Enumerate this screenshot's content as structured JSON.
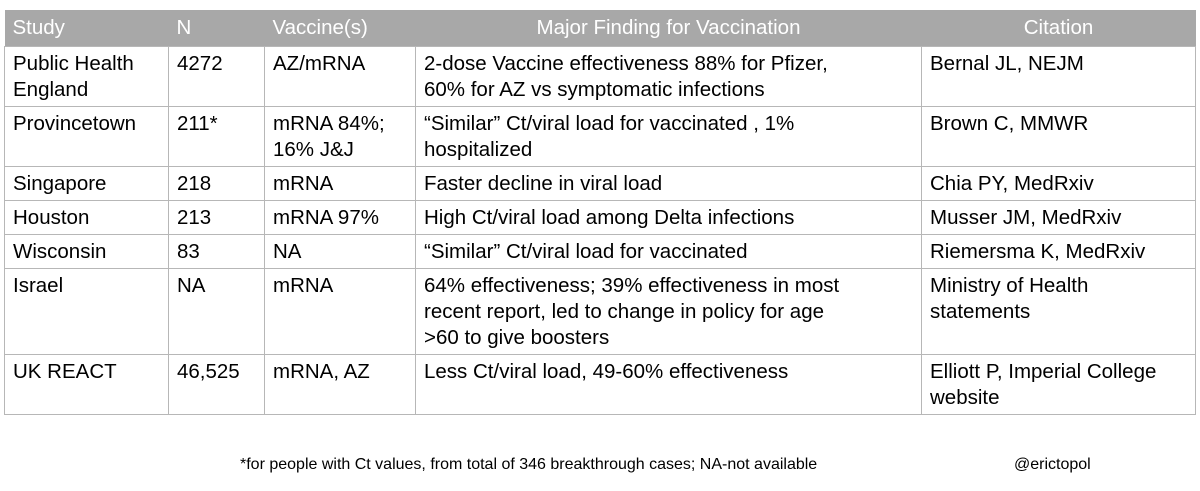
{
  "table": {
    "headers": [
      "Study",
      "N",
      "Vaccine(s)",
      "Major Finding for Vaccination",
      "Citation"
    ],
    "rows": [
      [
        "Public Health\nEngland",
        "4272",
        "AZ/mRNA",
        "2-dose Vaccine effectiveness 88% for Pfizer,\n60% for AZ vs symptomatic infections",
        "Bernal JL, NEJM"
      ],
      [
        "Provincetown",
        "211*",
        "mRNA 84%;\n16% J&J",
        "“Similar” Ct/viral load for vaccinated , 1%\nhospitalized",
        "Brown C, MMWR"
      ],
      [
        "Singapore",
        "218",
        "mRNA",
        "Faster decline in viral load",
        "Chia PY, MedRxiv"
      ],
      [
        "Houston",
        "213",
        "mRNA 97%",
        "High Ct/viral load among Delta infections",
        "Musser JM, MedRxiv"
      ],
      [
        "Wisconsin",
        "83",
        "NA",
        "“Similar” Ct/viral load for vaccinated",
        "Riemersma K, MedRxiv"
      ],
      [
        "Israel",
        "NA",
        "mRNA",
        "64% effectiveness; 39% effectiveness in most\nrecent report, led to change in policy for age\n>60 to give boosters",
        "Ministry of Health\nstatements"
      ],
      [
        "UK REACT",
        "46,525",
        "mRNA, AZ",
        "Less Ct/viral load, 49-60% effectiveness",
        "Elliott P, Imperial College\nwebsite"
      ]
    ]
  },
  "footnote": "*for people with Ct values, from total of 346 breakthrough cases; NA-not available",
  "handle": "@erictopol",
  "colors": {
    "header_bg": "#a8a8a8",
    "header_text": "#ffffff",
    "grid": "#b7b7b7",
    "text": "#000000"
  }
}
